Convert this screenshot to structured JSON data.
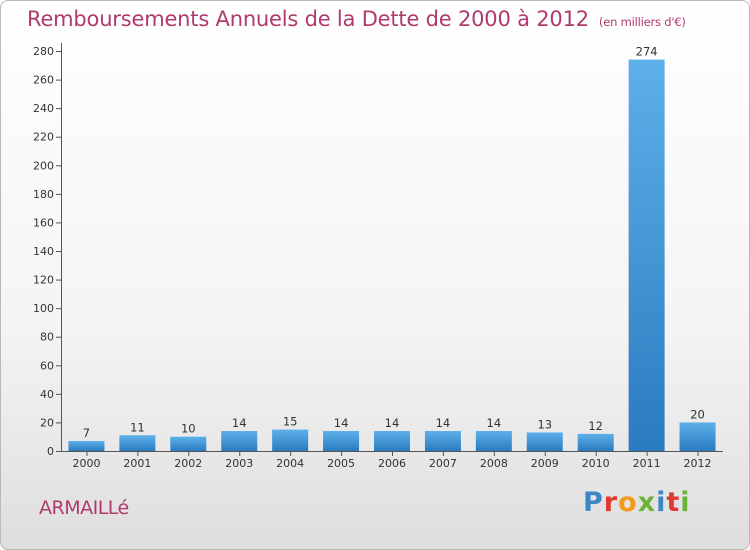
{
  "title": "Remboursements Annuels de la Dette de 2000 à 2012",
  "unit_label": "(en milliers d'€)",
  "commune": "ARMAILLé",
  "logo": {
    "text": "Proxiti",
    "letter_colors": [
      "#3d86c6",
      "#e03a2e",
      "#f29a1a",
      "#6bb33a",
      "#3d86c6",
      "#e03a2e",
      "#6bb33a"
    ]
  },
  "colors": {
    "bar_top": "#5eb0ea",
    "bar_bottom": "#2a7bbf",
    "title": "#b03a6e"
  },
  "chart_data": {
    "type": "bar",
    "title": "Remboursements Annuels de la Dette de 2000 à 2012",
    "xlabel": "",
    "ylabel": "",
    "ylim": [
      0,
      280
    ],
    "yticks": [
      0,
      20,
      40,
      60,
      80,
      100,
      120,
      140,
      160,
      180,
      200,
      220,
      240,
      260,
      280
    ],
    "grid": false,
    "categories": [
      "2000",
      "2001",
      "2002",
      "2003",
      "2004",
      "2005",
      "2006",
      "2007",
      "2008",
      "2009",
      "2010",
      "2011",
      "2012"
    ],
    "values": [
      7,
      11,
      10,
      14,
      15,
      14,
      14,
      14,
      14,
      13,
      12,
      274,
      20
    ]
  }
}
